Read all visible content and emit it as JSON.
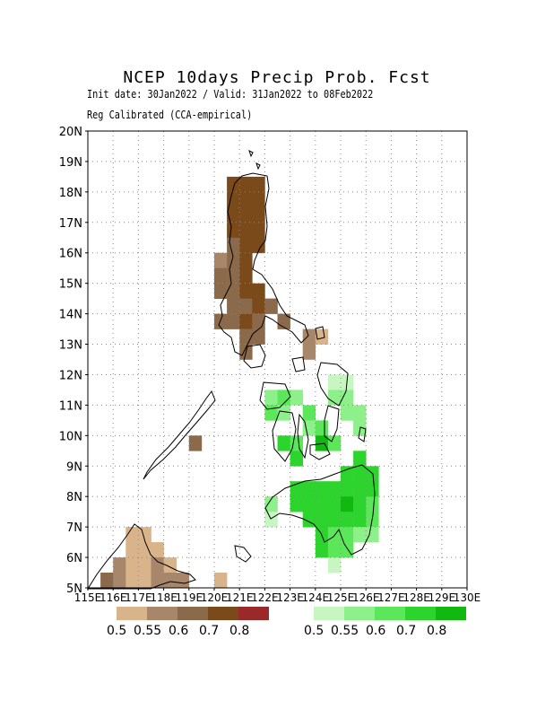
{
  "title": "NCEP 10days Precip Prob. Fcst",
  "subtitle_1": "Init date: 30Jan2022 / Valid: 31Jan2022 to 08Feb2022",
  "subtitle_2": "Reg Calibrated (CCA-empirical)",
  "map": {
    "lon_range": [
      115,
      130
    ],
    "lat_range": [
      5,
      20
    ],
    "lat_ticks": [
      "5N",
      "6N",
      "7N",
      "8N",
      "9N",
      "10N",
      "11N",
      "12N",
      "13N",
      "14N",
      "15N",
      "16N",
      "17N",
      "18N",
      "19N",
      "20N"
    ],
    "lon_ticks": [
      "115E",
      "116E",
      "117E",
      "118E",
      "119E",
      "120E",
      "121E",
      "122E",
      "123E",
      "124E",
      "125E",
      "126E",
      "127E",
      "128E",
      "129E",
      "130E"
    ],
    "grid": "dotted",
    "cell_size_deg": 0.5,
    "below_colors": [
      "#d9b48a",
      "#a8866a",
      "#8a6a4a",
      "#7a4a1a",
      "#9a2a2a"
    ],
    "above_colors": [
      "#c8f6c2",
      "#8ef08a",
      "#5ce65a",
      "#2ed42e",
      "#10b810"
    ],
    "below_cells": [
      [
        120.5,
        18.0,
        3
      ],
      [
        121.0,
        18.0,
        3
      ],
      [
        121.5,
        18.0,
        3
      ],
      [
        120.5,
        17.5,
        3
      ],
      [
        121.0,
        17.5,
        3
      ],
      [
        121.5,
        17.5,
        3
      ],
      [
        120.5,
        17.0,
        3
      ],
      [
        121.0,
        17.0,
        3
      ],
      [
        121.5,
        17.0,
        3
      ],
      [
        120.5,
        16.5,
        3
      ],
      [
        121.0,
        16.5,
        3
      ],
      [
        121.5,
        16.5,
        3
      ],
      [
        120.5,
        16.0,
        2
      ],
      [
        121.0,
        16.0,
        3
      ],
      [
        121.5,
        16.0,
        3
      ],
      [
        120.0,
        15.5,
        1
      ],
      [
        120.5,
        15.5,
        2
      ],
      [
        121.0,
        15.5,
        3
      ],
      [
        120.0,
        15.0,
        2
      ],
      [
        120.5,
        15.0,
        2
      ],
      [
        121.0,
        15.0,
        3
      ],
      [
        120.0,
        14.5,
        2
      ],
      [
        120.5,
        14.5,
        2
      ],
      [
        121.0,
        14.5,
        3
      ],
      [
        121.5,
        14.5,
        3
      ],
      [
        120.5,
        14.0,
        2
      ],
      [
        121.0,
        14.0,
        2
      ],
      [
        121.5,
        14.0,
        3
      ],
      [
        122.0,
        14.0,
        2
      ],
      [
        120.5,
        13.5,
        2
      ],
      [
        121.0,
        13.5,
        3
      ],
      [
        121.5,
        13.5,
        2
      ],
      [
        122.5,
        13.5,
        2
      ],
      [
        120.0,
        13.5,
        2
      ],
      [
        121.0,
        13.0,
        2
      ],
      [
        121.5,
        13.0,
        2
      ],
      [
        123.5,
        13.0,
        1
      ],
      [
        124.0,
        13.0,
        0
      ],
      [
        121.0,
        12.5,
        2
      ],
      [
        123.5,
        12.5,
        1
      ],
      [
        119.0,
        9.5,
        2
      ],
      [
        116.5,
        6.5,
        0
      ],
      [
        117.0,
        6.5,
        0
      ],
      [
        116.5,
        6.0,
        0
      ],
      [
        117.0,
        6.0,
        0
      ],
      [
        117.5,
        6.0,
        0
      ],
      [
        116.0,
        5.5,
        1
      ],
      [
        116.5,
        5.5,
        0
      ],
      [
        117.0,
        5.5,
        0
      ],
      [
        117.5,
        5.5,
        1
      ],
      [
        118.0,
        5.5,
        0
      ],
      [
        115.5,
        5.0,
        2
      ],
      [
        116.0,
        5.0,
        1
      ],
      [
        116.5,
        5.0,
        0
      ],
      [
        117.0,
        5.0,
        0
      ],
      [
        117.5,
        5.0,
        1
      ],
      [
        118.0,
        5.0,
        1
      ],
      [
        118.5,
        5.0,
        1
      ],
      [
        120.0,
        5.0,
        0
      ]
    ],
    "above_cells": [
      [
        124.5,
        11.5,
        0
      ],
      [
        125.0,
        11.5,
        0
      ],
      [
        122.0,
        11.0,
        1
      ],
      [
        122.5,
        11.0,
        2
      ],
      [
        123.0,
        11.0,
        1
      ],
      [
        124.5,
        11.0,
        1
      ],
      [
        125.0,
        11.0,
        1
      ],
      [
        122.0,
        10.5,
        2
      ],
      [
        122.5,
        10.5,
        1
      ],
      [
        123.5,
        10.5,
        2
      ],
      [
        125.0,
        10.5,
        1
      ],
      [
        125.5,
        10.5,
        1
      ],
      [
        123.5,
        10.0,
        1
      ],
      [
        124.0,
        10.0,
        2
      ],
      [
        125.5,
        10.0,
        1
      ],
      [
        122.5,
        9.5,
        3
      ],
      [
        123.0,
        9.5,
        2
      ],
      [
        124.0,
        9.5,
        4
      ],
      [
        124.5,
        9.5,
        2
      ],
      [
        123.0,
        9.0,
        3
      ],
      [
        125.5,
        9.0,
        3
      ],
      [
        123.0,
        8.0,
        3
      ],
      [
        123.5,
        8.0,
        3
      ],
      [
        124.0,
        8.0,
        3
      ],
      [
        124.5,
        8.0,
        3
      ],
      [
        125.0,
        8.0,
        3
      ],
      [
        125.5,
        8.0,
        3
      ],
      [
        126.0,
        8.0,
        3
      ],
      [
        125.0,
        8.5,
        3
      ],
      [
        125.5,
        8.5,
        3
      ],
      [
        126.0,
        8.5,
        3
      ],
      [
        122.0,
        7.5,
        1
      ],
      [
        123.0,
        7.5,
        3
      ],
      [
        123.5,
        7.5,
        3
      ],
      [
        124.0,
        7.5,
        3
      ],
      [
        124.5,
        7.5,
        3
      ],
      [
        125.0,
        7.5,
        4
      ],
      [
        125.5,
        7.5,
        3
      ],
      [
        126.0,
        7.5,
        2
      ],
      [
        122.0,
        7.0,
        0
      ],
      [
        123.5,
        7.0,
        3
      ],
      [
        124.0,
        7.0,
        3
      ],
      [
        124.5,
        7.0,
        3
      ],
      [
        125.0,
        7.0,
        3
      ],
      [
        125.5,
        7.0,
        3
      ],
      [
        126.0,
        7.0,
        2
      ],
      [
        124.0,
        6.5,
        3
      ],
      [
        124.5,
        6.5,
        2
      ],
      [
        125.0,
        6.5,
        2
      ],
      [
        125.5,
        6.5,
        1
      ],
      [
        126.0,
        6.5,
        1
      ],
      [
        124.0,
        6.0,
        3
      ],
      [
        124.5,
        6.0,
        2
      ],
      [
        125.0,
        6.0,
        2
      ],
      [
        124.5,
        5.5,
        0
      ]
    ]
  },
  "legend_below": {
    "labels": [
      "0.5",
      "0.55",
      "0.6",
      "0.7",
      "0.8"
    ]
  },
  "legend_above": {
    "labels": [
      "0.5",
      "0.55",
      "0.6",
      "0.7",
      "0.8"
    ]
  }
}
